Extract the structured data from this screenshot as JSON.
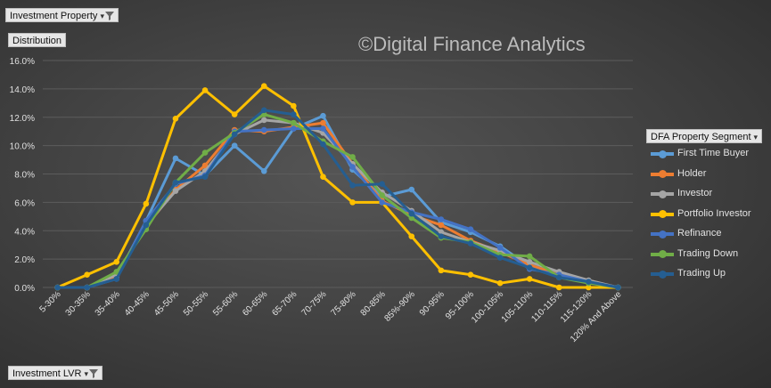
{
  "filters": {
    "report_filter_label": "Investment Property",
    "value_field_label": "Distribution",
    "axis_field_label": "Investment LVR",
    "legend_field_label": "DFA Property Segment"
  },
  "watermark": "©Digital Finance Analytics",
  "colors": {
    "background": "#444444",
    "gridline": "#5c5c5c",
    "tick_text": "#e0e0e0"
  },
  "chart_data": {
    "type": "line",
    "title": "",
    "xlabel": "",
    "ylabel": "",
    "ylim": [
      0,
      16
    ],
    "y_ticks": [
      "0.0%",
      "2.0%",
      "4.0%",
      "6.0%",
      "8.0%",
      "10.0%",
      "12.0%",
      "14.0%",
      "16.0%"
    ],
    "grid": true,
    "legend_position": "right",
    "categories": [
      "5-30%",
      "30-35%",
      "35-40%",
      "40-45%",
      "45-50%",
      "50-55%",
      "55-60%",
      "60-65%",
      "65-70%",
      "70-75%",
      "75-80%",
      "80-85%",
      "85%-90%",
      "90-95%",
      "95-100%",
      "100-105%",
      "105-110%",
      "110-115%",
      "115-120%",
      "120% And Above"
    ],
    "series": [
      {
        "name": "First Time Buyer",
        "color": "#5b9bd5",
        "values": [
          0.0,
          0.0,
          0.7,
          4.7,
          9.1,
          7.9,
          10.0,
          8.2,
          11.2,
          12.1,
          8.3,
          6.4,
          6.9,
          4.6,
          3.9,
          2.9,
          1.5,
          1.0,
          0.4,
          0.0
        ]
      },
      {
        "name": "Holder",
        "color": "#ed7d31",
        "values": [
          0.0,
          0.0,
          0.8,
          4.3,
          6.9,
          8.6,
          11.1,
          11.0,
          11.3,
          11.6,
          8.7,
          6.1,
          5.1,
          4.4,
          3.3,
          2.5,
          1.6,
          0.9,
          0.4,
          0.0
        ]
      },
      {
        "name": "Investor",
        "color": "#a5a5a5",
        "values": [
          0.0,
          0.0,
          0.9,
          4.4,
          6.8,
          8.2,
          10.8,
          11.8,
          11.6,
          10.9,
          8.7,
          6.7,
          5.4,
          3.9,
          3.2,
          2.6,
          1.8,
          1.1,
          0.5,
          0.0
        ]
      },
      {
        "name": "Portfolio Investor",
        "color": "#ffc000",
        "values": [
          0.0,
          0.9,
          1.8,
          5.9,
          11.9,
          13.9,
          12.2,
          14.2,
          12.8,
          7.8,
          6.0,
          6.0,
          3.6,
          1.2,
          0.9,
          0.3,
          0.6,
          0.0,
          0.0,
          0.0
        ]
      },
      {
        "name": "Refinance",
        "color": "#4472c4",
        "values": [
          0.0,
          0.0,
          0.6,
          4.7,
          7.3,
          7.9,
          11.0,
          11.1,
          11.2,
          11.2,
          8.5,
          6.0,
          5.3,
          4.8,
          4.1,
          2.8,
          1.3,
          0.9,
          0.4,
          0.0
        ]
      },
      {
        "name": "Trading Down",
        "color": "#70ad47",
        "values": [
          0.0,
          0.0,
          1.1,
          4.1,
          7.4,
          9.5,
          10.9,
          12.2,
          11.6,
          10.3,
          9.2,
          6.5,
          4.9,
          3.5,
          3.2,
          2.3,
          2.2,
          0.7,
          0.3,
          0.0
        ]
      },
      {
        "name": "Trading Up",
        "color": "#255e91",
        "values": [
          0.0,
          0.0,
          0.6,
          4.4,
          7.4,
          7.8,
          10.8,
          12.5,
          12.2,
          10.1,
          7.2,
          7.3,
          5.2,
          3.6,
          3.1,
          2.1,
          1.4,
          0.7,
          0.4,
          0.0
        ]
      }
    ]
  }
}
